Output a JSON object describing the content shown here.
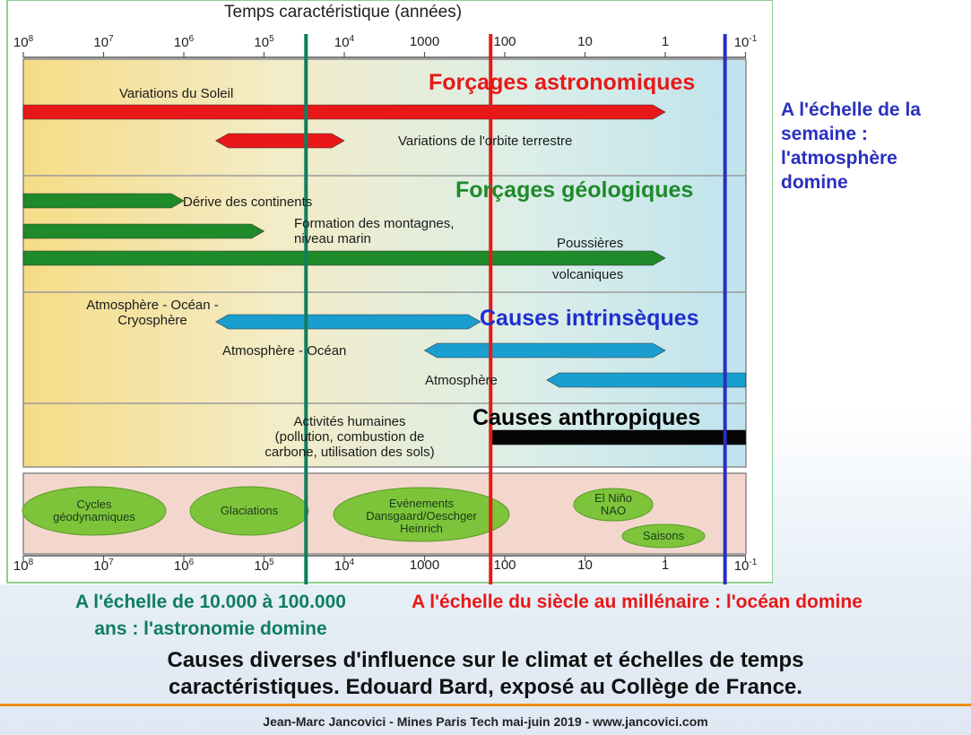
{
  "figure": {
    "axis_title": "Temps caractéristique (années)",
    "ticks": [
      {
        "base": "10",
        "exp": "8",
        "year": 100000000
      },
      {
        "base": "10",
        "exp": "7",
        "year": 10000000
      },
      {
        "base": "10",
        "exp": "6",
        "year": 1000000
      },
      {
        "base": "10",
        "exp": "5",
        "year": 100000
      },
      {
        "base": "10",
        "exp": "4",
        "year": 10000
      },
      {
        "base": "1000",
        "exp": "",
        "year": 1000
      },
      {
        "base": "100",
        "exp": "",
        "year": 100
      },
      {
        "base": "10",
        "exp": "",
        "year": 10
      },
      {
        "base": "1",
        "exp": "",
        "year": 1
      },
      {
        "base": "10",
        "exp": "-1",
        "year": 0.1
      }
    ],
    "sections": {
      "astronomiques": {
        "title": "Forçages astronomiques",
        "color": "#e81818"
      },
      "geologiques": {
        "title": "Forçages géologiques",
        "color": "#1f8a2a"
      },
      "intrinseques": {
        "title": "Causes intrinsèques",
        "color": "#1f2fd0"
      },
      "anthropiques": {
        "title": "Causes anthropiques",
        "color": "#000000"
      }
    },
    "bars": [
      {
        "id": "soleil",
        "label_lines": [
          "Variations du Soleil"
        ],
        "from_year": 100000000,
        "to_year": 1,
        "color": "#e81818",
        "arrow_left": false,
        "arrow_right": true
      },
      {
        "id": "orbite",
        "label_lines": [
          "Variations de l'orbite terrestre"
        ],
        "from_year": 400000,
        "to_year": 10000,
        "color": "#e81818",
        "arrow_left": true,
        "arrow_right": true
      },
      {
        "id": "continents",
        "label_lines": [
          "Dérive des continents"
        ],
        "from_year": 100000000,
        "to_year": 1000000,
        "color": "#1f8a2a",
        "arrow_left": false,
        "arrow_right": true
      },
      {
        "id": "montagnes",
        "label_lines": [
          "Formation des montagnes,",
          "niveau marin"
        ],
        "from_year": 100000000,
        "to_year": 100000,
        "color": "#1f8a2a",
        "arrow_left": false,
        "arrow_right": true
      },
      {
        "id": "volcan",
        "label_lines": [
          "Poussières",
          "volcaniques"
        ],
        "from_year": 100000000,
        "to_year": 1,
        "color": "#1f8a2a",
        "arrow_left": false,
        "arrow_right": true
      },
      {
        "id": "aoc",
        "label_lines": [
          "Atmosphère - Océan -",
          "Cryosphère"
        ],
        "from_year": 400000,
        "to_year": 200,
        "color": "#1a9ed0",
        "arrow_left": true,
        "arrow_right": true
      },
      {
        "id": "ao",
        "label_lines": [
          "Atmosphère - Océan"
        ],
        "from_year": 1000,
        "to_year": 1,
        "color": "#1a9ed0",
        "arrow_left": true,
        "arrow_right": true
      },
      {
        "id": "atm",
        "label_lines": [
          "Atmosphère"
        ],
        "from_year": 30,
        "to_year": 0.1,
        "color": "#1a9ed0",
        "arrow_left": true,
        "arrow_right": false
      },
      {
        "id": "humain",
        "label_lines": [
          "Activités humaines",
          "(pollution, combustion de",
          "carbone, utilisation des sols)"
        ],
        "from_year": 150,
        "to_year": 0.1,
        "color": "#050505",
        "arrow_left": false,
        "arrow_right": false
      }
    ],
    "ovals": [
      {
        "lines": [
          "Cycles",
          "géodynamiques"
        ]
      },
      {
        "lines": [
          "Glaciations"
        ]
      },
      {
        "lines": [
          "Evénements",
          "Dansgaard/Oeschger",
          "Heinrich"
        ]
      },
      {
        "lines": [
          "El Niño",
          "NAO"
        ]
      },
      {
        "lines": [
          "Saisons"
        ]
      }
    ],
    "markers": [
      {
        "id": "green",
        "year": 30000,
        "color": "#0f7e5e"
      },
      {
        "id": "red",
        "year": 150,
        "color": "#e81818"
      },
      {
        "id": "blue",
        "year": 0.18,
        "color": "#2a2fc0"
      }
    ]
  },
  "notes": {
    "semaine": {
      "lines": [
        "A l'échelle de la",
        "semaine :",
        "l'atmosphère",
        "domine"
      ],
      "color": "#2a30c0"
    },
    "astronomie": {
      "lines": [
        "A l'échelle de 10.000 à 100.000",
        "ans : l'astronomie domine"
      ],
      "color": "#0f7e5e"
    },
    "ocean": {
      "lines": [
        "A l'échelle du siècle au millénaire : l'océan domine"
      ],
      "color": "#e81818"
    }
  },
  "caption": {
    "lines": [
      "Causes diverses d'influence sur le climat et échelles de temps",
      "caractéristiques. Edouard Bard, exposé au Collège de France."
    ]
  },
  "footer": "Jean-Marc Jancovici - Mines Paris Tech mai-juin 2019 - www.jancovici.com"
}
